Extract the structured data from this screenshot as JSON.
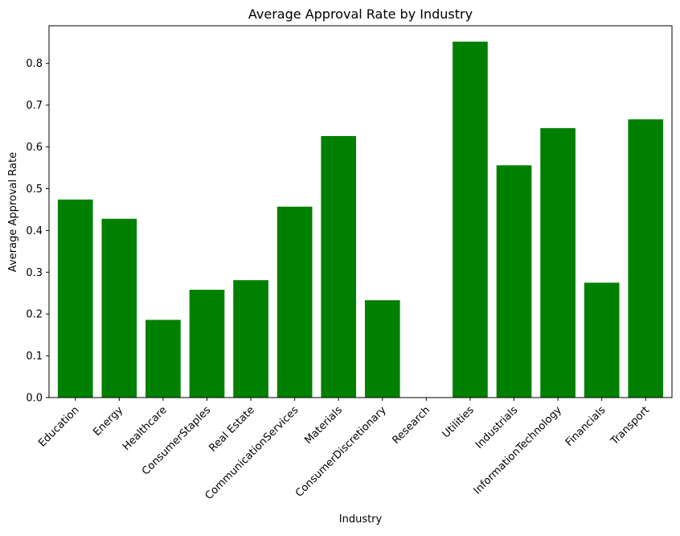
{
  "chart_data": {
    "type": "bar",
    "title": "Average Approval Rate by Industry",
    "xlabel": "Industry",
    "ylabel": "Average Approval Rate",
    "categories": [
      "Education",
      "Energy",
      "Healthcare",
      "ConsumerStaples",
      "Real Estate",
      "CommunicationServices",
      "Materials",
      "ConsumerDiscretionary",
      "Research",
      "Utilities",
      "Industrials",
      "InformationTechnology",
      "Financials",
      "Transport"
    ],
    "values": [
      0.474,
      0.428,
      0.186,
      0.258,
      0.281,
      0.457,
      0.626,
      0.233,
      0.0,
      0.852,
      0.556,
      0.645,
      0.275,
      0.666
    ],
    "ylim": [
      0,
      0.89
    ],
    "yticks": [
      0.0,
      0.1,
      0.2,
      0.3,
      0.4,
      0.5,
      0.6,
      0.7,
      0.8
    ],
    "ytick_labels": [
      "0.0",
      "0.1",
      "0.2",
      "0.3",
      "0.4",
      "0.5",
      "0.6",
      "0.7",
      "0.8"
    ],
    "bar_color": "#008000",
    "grid": false,
    "legend": "none"
  }
}
